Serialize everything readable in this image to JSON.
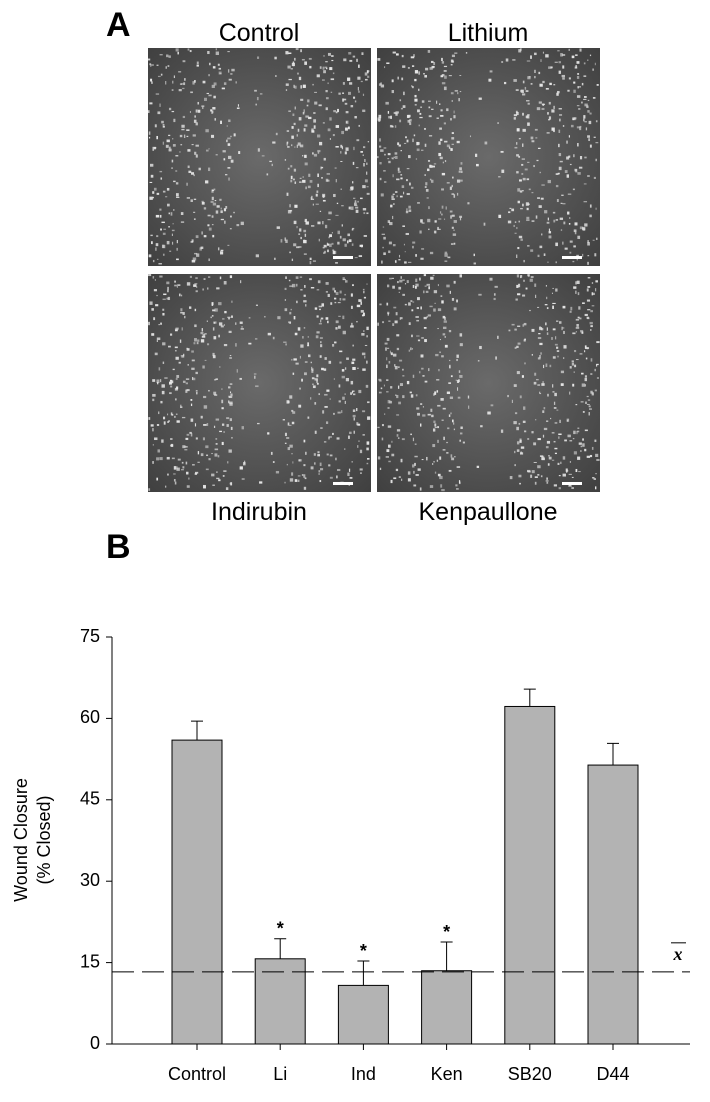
{
  "panel_a": {
    "label": "A",
    "images": [
      {
        "caption": "Control"
      },
      {
        "caption": "Lithium"
      },
      {
        "caption": "Indirubin"
      },
      {
        "caption": "Kenpaullone"
      }
    ]
  },
  "panel_b_label": "B",
  "chart_data": {
    "type": "bar",
    "ylabel": [
      "Wound Closure",
      "(% Closed)"
    ],
    "categories": [
      "Control",
      "Li",
      "Ind",
      "Ken",
      "SB20",
      "D44"
    ],
    "values": [
      56,
      15.7,
      10.8,
      13.5,
      62.2,
      51.4
    ],
    "errors": [
      3.5,
      3.7,
      4.5,
      5.3,
      3.2,
      4.0
    ],
    "significance": [
      null,
      "*",
      "*",
      "*",
      null,
      null
    ],
    "color": "#b3b3b3",
    "ylim": [
      0,
      75
    ],
    "yticks": [
      0,
      15,
      30,
      45,
      60,
      75
    ],
    "reference_line": {
      "value": 13.3,
      "label": "x"
    }
  }
}
